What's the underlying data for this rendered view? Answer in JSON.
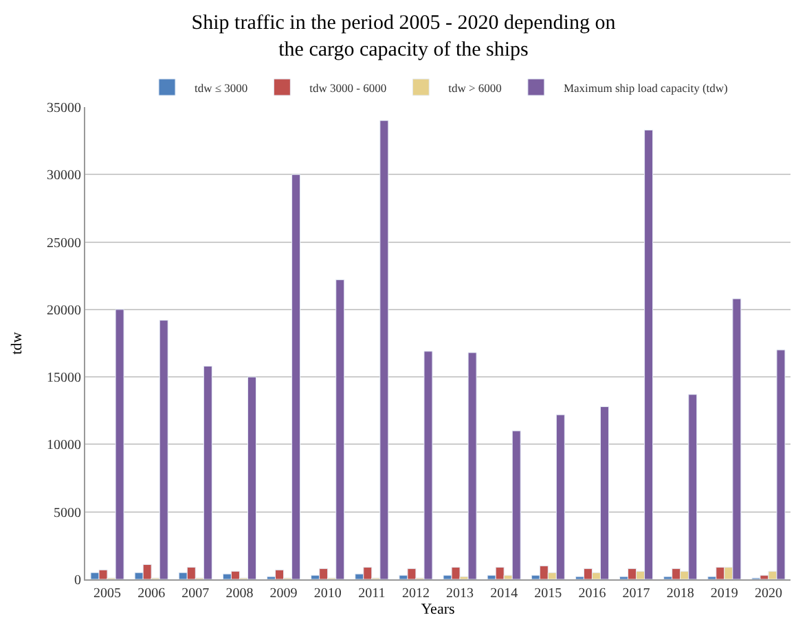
{
  "chart_data": {
    "type": "bar",
    "title": "Ship traffic in the period 2005 - 2020 depending on\nthe cargo capacity of the ships",
    "xlabel": "Years",
    "ylabel": "tdw",
    "categories": [
      "2005",
      "2006",
      "2007",
      "2008",
      "2009",
      "2010",
      "2011",
      "2012",
      "2013",
      "2014",
      "2015",
      "2016",
      "2017",
      "2018",
      "2019",
      "2020"
    ],
    "series": [
      {
        "name": "tdw ≤ 3000",
        "color": "#4f81bd",
        "values": [
          500,
          500,
          500,
          400,
          200,
          300,
          400,
          300,
          300,
          300,
          300,
          200,
          200,
          200,
          200,
          100
        ]
      },
      {
        "name": "tdw 3000 - 6000",
        "color": "#c0504d",
        "values": [
          700,
          1100,
          900,
          600,
          700,
          800,
          900,
          800,
          900,
          900,
          1000,
          800,
          800,
          800,
          900,
          300
        ]
      },
      {
        "name": "tdw > 6000",
        "color": "#e6d08a",
        "values": [
          100,
          100,
          100,
          100,
          100,
          100,
          100,
          100,
          200,
          300,
          500,
          500,
          600,
          600,
          900,
          600
        ]
      },
      {
        "name": "Maximum ship load capacity (tdw)",
        "color": "#7b5fa0",
        "values": [
          20000,
          19200,
          15800,
          15000,
          30000,
          22200,
          34000,
          16900,
          16800,
          11000,
          12200,
          12800,
          33300,
          13700,
          20800,
          17000
        ]
      }
    ],
    "ylim": [
      0,
      35000
    ],
    "yticks": [
      0,
      5000,
      10000,
      15000,
      20000,
      25000,
      30000,
      35000
    ],
    "grid": "y",
    "legend": "top"
  }
}
